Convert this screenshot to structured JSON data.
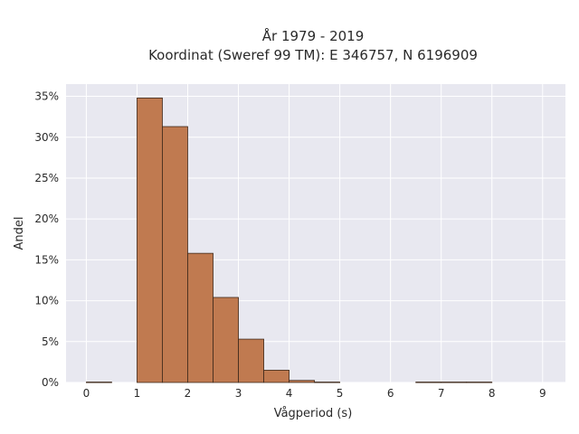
{
  "chart_data": {
    "type": "bar",
    "title_lines": [
      "År 1979 - 2019",
      "Koordinat (Sweref 99 TM): E 346757, N 6196909"
    ],
    "xlabel": "Vågperiod (s)",
    "ylabel": "Andel",
    "xlim": [
      -0.4,
      9.45
    ],
    "ylim": [
      0,
      36.5
    ],
    "x_ticks": [
      0,
      1,
      2,
      3,
      4,
      5,
      6,
      7,
      8,
      9
    ],
    "y_ticks": [
      0,
      5,
      10,
      15,
      20,
      25,
      30,
      35
    ],
    "y_tick_format": "percent",
    "bin_width": 0.5,
    "bins": [
      {
        "start": 0.0,
        "value": 0.05
      },
      {
        "start": 1.0,
        "value": 34.8
      },
      {
        "start": 1.5,
        "value": 31.3
      },
      {
        "start": 2.0,
        "value": 15.8
      },
      {
        "start": 2.5,
        "value": 10.4
      },
      {
        "start": 3.0,
        "value": 5.3
      },
      {
        "start": 3.5,
        "value": 1.5
      },
      {
        "start": 4.0,
        "value": 0.25
      },
      {
        "start": 4.5,
        "value": 0.05
      },
      {
        "start": 6.5,
        "value": 0.05
      },
      {
        "start": 7.0,
        "value": 0.05
      },
      {
        "start": 7.5,
        "value": 0.05
      }
    ],
    "grid": true,
    "colors": {
      "bar_fill": "#c07a50",
      "bar_edge": "#3f2a1c",
      "plot_bg": "#e8e8f0",
      "grid": "#ffffff"
    }
  }
}
